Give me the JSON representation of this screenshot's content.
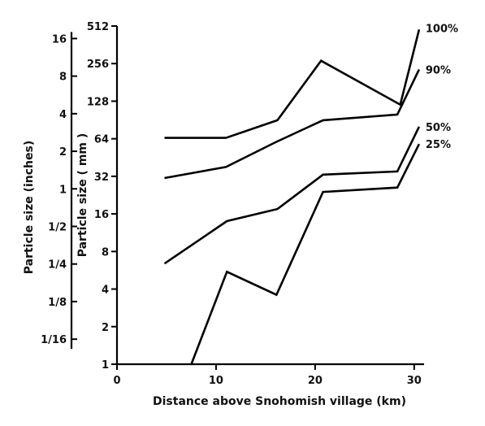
{
  "chart_data": {
    "type": "line",
    "title": "",
    "xlabel": "Distance above Snohomish village (km)",
    "ylabel": "Particle size ( mm )",
    "ylabel_secondary": "Particle size (inches)",
    "xlim": [
      0,
      31
    ],
    "ylim": [
      1,
      512
    ],
    "y_scale": "log2",
    "grid": false,
    "legend": "inline-right",
    "x_ticks": [
      0,
      10,
      20,
      30
    ],
    "x_tick_labels": [
      "0",
      "10",
      "20",
      "30"
    ],
    "y_ticks_mm": [
      1,
      2,
      4,
      8,
      16,
      32,
      64,
      128,
      256,
      512
    ],
    "y_tick_labels_mm": [
      "1",
      "2",
      "4",
      "8",
      "16",
      "32",
      "64",
      "128",
      "256",
      "512"
    ],
    "y_ticks_inches": [
      0.0625,
      0.125,
      0.25,
      0.5,
      1,
      2,
      4,
      8,
      16
    ],
    "y_tick_labels_inches": [
      "1/16",
      "1/8",
      "1/4",
      "1/2",
      "1",
      "2",
      "4",
      "8",
      "16"
    ],
    "series": [
      {
        "name": "100%",
        "points": [
          [
            4.8,
            65
          ],
          [
            11,
            65
          ],
          [
            16.2,
            90
          ],
          [
            20.6,
            270
          ],
          [
            28.6,
            120
          ],
          [
            30.5,
            480
          ]
        ]
      },
      {
        "name": "90%",
        "points": [
          [
            4.8,
            31
          ],
          [
            11,
            38
          ],
          [
            16,
            60
          ],
          [
            20.8,
            90
          ],
          [
            28.3,
            100
          ],
          [
            30.5,
            230
          ]
        ]
      },
      {
        "name": "50%",
        "points": [
          [
            4.8,
            6.4
          ],
          [
            11.1,
            14
          ],
          [
            16.2,
            17.5
          ],
          [
            20.8,
            33
          ],
          [
            28.3,
            35
          ],
          [
            30.5,
            80
          ]
        ]
      },
      {
        "name": "25%",
        "points": [
          [
            7.5,
            1
          ],
          [
            11.1,
            5.5
          ],
          [
            16.1,
            3.6
          ],
          [
            20.8,
            24
          ],
          [
            28.3,
            26
          ],
          [
            30.5,
            58
          ]
        ]
      }
    ]
  }
}
